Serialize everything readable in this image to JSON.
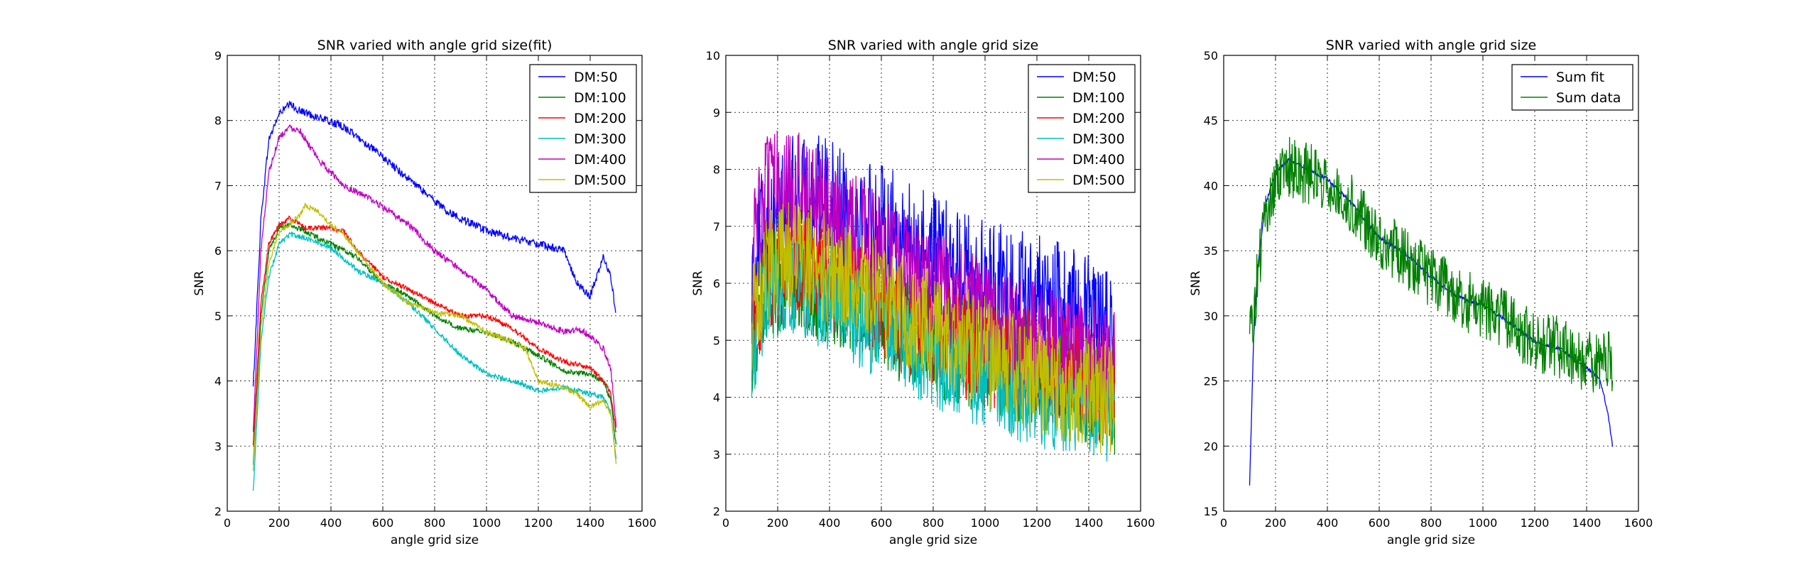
{
  "chart_data": [
    {
      "type": "line",
      "title": "SNR varied with angle grid size(fit)",
      "xlabel": "angle grid size",
      "ylabel": "SNR",
      "xlim": [
        0,
        1600
      ],
      "ylim": [
        2,
        9
      ],
      "xticks": [
        "0",
        "200",
        "400",
        "600",
        "800",
        "1000",
        "1200",
        "1400",
        "1600"
      ],
      "yticks": [
        "2",
        "3",
        "4",
        "5",
        "6",
        "7",
        "8",
        "9"
      ],
      "grid": true,
      "legend": "top-right",
      "x_range": [
        100,
        1500
      ],
      "series": [
        {
          "name": "DM:50",
          "color": "#0000ff",
          "noise": 0.06,
          "x": [
            100,
            130,
            160,
            200,
            240,
            280,
            350,
            450,
            550,
            700,
            850,
            1000,
            1150,
            1250,
            1300,
            1350,
            1400,
            1450,
            1480,
            1500
          ],
          "y": [
            3.9,
            6.5,
            7.7,
            8.1,
            8.25,
            8.15,
            8.05,
            7.9,
            7.6,
            7.1,
            6.6,
            6.3,
            6.15,
            6.05,
            6.0,
            5.5,
            5.3,
            5.9,
            5.6,
            5.0
          ]
        },
        {
          "name": "DM:100",
          "color": "#008000",
          "noise": 0.04,
          "x": [
            100,
            130,
            160,
            200,
            240,
            300,
            400,
            500,
            600,
            700,
            800,
            900,
            1000,
            1100,
            1200,
            1300,
            1400,
            1450,
            1480,
            1500
          ],
          "y": [
            2.7,
            5.0,
            6.0,
            6.35,
            6.4,
            6.3,
            6.1,
            5.9,
            5.5,
            5.3,
            5.0,
            4.8,
            4.75,
            4.6,
            4.4,
            4.15,
            4.1,
            4.0,
            3.7,
            3.0
          ]
        },
        {
          "name": "DM:200",
          "color": "#ff0000",
          "noise": 0.04,
          "x": [
            100,
            130,
            160,
            200,
            240,
            300,
            400,
            450,
            500,
            600,
            700,
            800,
            900,
            1000,
            1100,
            1200,
            1300,
            1400,
            1450,
            1480,
            1500
          ],
          "y": [
            3.0,
            5.2,
            6.1,
            6.4,
            6.5,
            6.35,
            6.35,
            6.3,
            6.0,
            5.6,
            5.4,
            5.2,
            5.0,
            5.0,
            4.8,
            4.5,
            4.3,
            4.2,
            4.0,
            3.8,
            3.2
          ]
        },
        {
          "name": "DM:300",
          "color": "#00bfbf",
          "noise": 0.04,
          "x": [
            100,
            130,
            160,
            200,
            240,
            300,
            400,
            500,
            600,
            700,
            800,
            900,
            1000,
            1100,
            1200,
            1300,
            1400,
            1450,
            1480,
            1500
          ],
          "y": [
            2.3,
            4.6,
            5.6,
            6.1,
            6.25,
            6.2,
            6.05,
            5.7,
            5.5,
            5.2,
            4.8,
            4.4,
            4.1,
            4.0,
            3.85,
            3.9,
            3.8,
            3.75,
            3.5,
            2.8
          ]
        },
        {
          "name": "DM:400",
          "color": "#bf00bf",
          "noise": 0.05,
          "x": [
            100,
            130,
            160,
            200,
            240,
            280,
            350,
            450,
            550,
            700,
            800,
            900,
            1000,
            1100,
            1200,
            1300,
            1350,
            1400,
            1450,
            1480,
            1500
          ],
          "y": [
            3.2,
            6.0,
            7.2,
            7.75,
            7.9,
            7.85,
            7.4,
            7.0,
            6.8,
            6.4,
            6.0,
            5.7,
            5.4,
            5.0,
            4.9,
            4.75,
            4.8,
            4.7,
            4.5,
            4.2,
            3.3
          ]
        },
        {
          "name": "DM:500",
          "color": "#bfbf00",
          "noise": 0.04,
          "x": [
            100,
            130,
            160,
            200,
            240,
            280,
            300,
            350,
            400,
            450,
            500,
            600,
            700,
            800,
            900,
            1000,
            1100,
            1150,
            1200,
            1300,
            1350,
            1400,
            1450,
            1480,
            1500
          ],
          "y": [
            2.6,
            4.8,
            5.8,
            6.3,
            6.4,
            6.55,
            6.7,
            6.6,
            6.4,
            6.25,
            6.0,
            5.5,
            5.2,
            5.05,
            5.0,
            4.75,
            4.6,
            4.5,
            4.0,
            3.9,
            3.8,
            3.6,
            3.7,
            3.5,
            2.75
          ]
        }
      ]
    },
    {
      "type": "line",
      "title": "SNR varied with angle grid size",
      "xlabel": "angle grid size",
      "ylabel": "SNR",
      "xlim": [
        0,
        1600
      ],
      "ylim": [
        2,
        10
      ],
      "xticks": [
        "0",
        "200",
        "400",
        "600",
        "800",
        "1000",
        "1200",
        "1400",
        "1600"
      ],
      "yticks": [
        "2",
        "3",
        "4",
        "5",
        "6",
        "7",
        "8",
        "9",
        "10"
      ],
      "grid": true,
      "legend": "top-right",
      "x_range": [
        100,
        1500
      ],
      "series": [
        {
          "name": "DM:50",
          "color": "#0000ff",
          "noise": 1.1,
          "x": [
            100,
            150,
            250,
            400,
            600,
            800,
            1000,
            1200,
            1400,
            1500
          ],
          "y": [
            6.0,
            7.2,
            7.5,
            7.5,
            7.0,
            6.5,
            6.0,
            5.8,
            5.4,
            5.0
          ]
        },
        {
          "name": "DM:100",
          "color": "#008000",
          "noise": 1.0,
          "x": [
            100,
            150,
            250,
            400,
            600,
            800,
            1000,
            1200,
            1400,
            1500
          ],
          "y": [
            5.0,
            6.0,
            6.1,
            5.9,
            5.4,
            5.0,
            4.7,
            4.4,
            4.2,
            4.0
          ]
        },
        {
          "name": "DM:200",
          "color": "#ff0000",
          "noise": 1.0,
          "x": [
            100,
            150,
            250,
            400,
            600,
            800,
            1000,
            1200,
            1400,
            1500
          ],
          "y": [
            5.2,
            6.1,
            6.3,
            6.1,
            5.6,
            5.1,
            4.8,
            4.6,
            4.3,
            4.1
          ]
        },
        {
          "name": "DM:300",
          "color": "#00bfbf",
          "noise": 0.9,
          "x": [
            100,
            150,
            250,
            400,
            600,
            800,
            1000,
            1200,
            1400,
            1500
          ],
          "y": [
            4.8,
            5.8,
            6.0,
            5.7,
            5.2,
            4.7,
            4.3,
            4.0,
            3.9,
            3.7
          ]
        },
        {
          "name": "DM:400",
          "color": "#bf00bf",
          "noise": 1.0,
          "x": [
            100,
            150,
            250,
            400,
            600,
            800,
            1000,
            1200,
            1400,
            1500
          ],
          "y": [
            6.5,
            7.6,
            7.8,
            7.2,
            6.6,
            6.0,
            5.5,
            5.0,
            4.8,
            4.5
          ]
        },
        {
          "name": "DM:500",
          "color": "#bfbf00",
          "noise": 1.0,
          "x": [
            100,
            150,
            250,
            400,
            600,
            800,
            1000,
            1200,
            1400,
            1500
          ],
          "y": [
            5.3,
            6.3,
            6.5,
            6.3,
            5.7,
            5.2,
            4.8,
            4.3,
            4.1,
            3.9
          ]
        }
      ]
    },
    {
      "type": "line",
      "title": "SNR varied with angle grid size",
      "xlabel": "angle grid size",
      "ylabel": "SNR",
      "xlim": [
        0,
        1600
      ],
      "ylim": [
        15,
        50
      ],
      "xticks": [
        "0",
        "200",
        "400",
        "600",
        "800",
        "1000",
        "1200",
        "1400",
        "1600"
      ],
      "yticks": [
        "15",
        "20",
        "25",
        "30",
        "35",
        "40",
        "45",
        "50"
      ],
      "grid": true,
      "legend": "top-right",
      "x_range": [
        100,
        1500
      ],
      "series": [
        {
          "name": "Sum fit",
          "color": "#0000ff",
          "noise": 0.15,
          "x": [
            100,
            115,
            130,
            160,
            200,
            250,
            300,
            400,
            500,
            600,
            700,
            800,
            900,
            1000,
            1100,
            1200,
            1300,
            1400,
            1450,
            1480,
            1500
          ],
          "y": [
            17.0,
            28.0,
            33.5,
            38.5,
            41.0,
            42.0,
            41.5,
            40.5,
            38.5,
            36.0,
            34.8,
            33.0,
            31.5,
            30.8,
            29.5,
            28.0,
            27.5,
            26.0,
            25.2,
            22.8,
            20.0
          ]
        },
        {
          "name": "Sum data",
          "color": "#008000",
          "noise": 2.4,
          "x": [
            100,
            115,
            130,
            160,
            200,
            250,
            300,
            400,
            500,
            600,
            700,
            800,
            900,
            1000,
            1100,
            1200,
            1300,
            1400,
            1450,
            1500
          ],
          "y": [
            29.0,
            30.0,
            33.0,
            37.5,
            40.0,
            41.5,
            41.0,
            40.5,
            38.5,
            36.0,
            34.5,
            33.0,
            31.5,
            30.5,
            29.5,
            28.0,
            27.5,
            26.5,
            26.3,
            26.5
          ]
        }
      ]
    }
  ]
}
